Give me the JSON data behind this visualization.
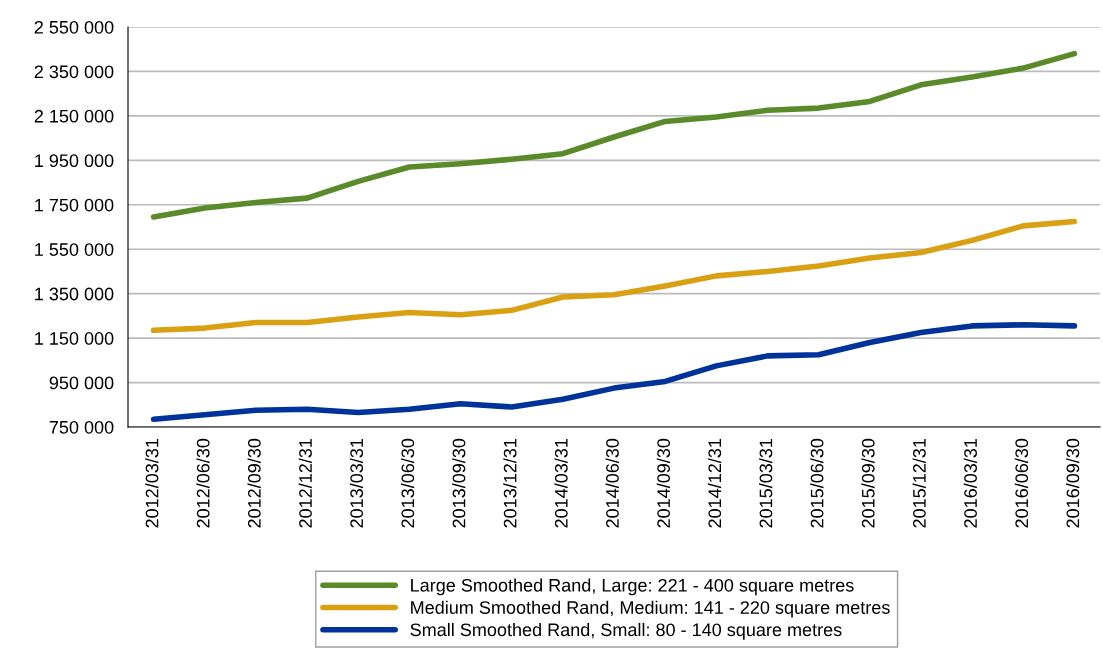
{
  "chart_data": {
    "type": "line",
    "categories": [
      "2012/03/31",
      "2012/06/30",
      "2012/09/30",
      "2012/12/31",
      "2013/03/31",
      "2013/06/30",
      "2013/09/30",
      "2013/12/31",
      "2014/03/31",
      "2014/06/30",
      "2014/09/30",
      "2014/12/31",
      "2015/03/31",
      "2015/06/30",
      "2015/09/30",
      "2015/12/31",
      "2016/03/31",
      "2016/06/30",
      "2016/09/30"
    ],
    "series": [
      {
        "name": "Large Smoothed Rand, Large: 221 - 400 square metres",
        "color": "#5b8a2a",
        "values": [
          1695000,
          1735000,
          1760000,
          1780000,
          1855000,
          1920000,
          1935000,
          1955000,
          1980000,
          2055000,
          2125000,
          2145000,
          2175000,
          2185000,
          2215000,
          2290000,
          2325000,
          2365000,
          2430000
        ]
      },
      {
        "name": "Medium Smoothed Rand, Medium: 141 - 220 square metres",
        "color": "#d9a014",
        "values": [
          1185000,
          1195000,
          1220000,
          1220000,
          1245000,
          1265000,
          1255000,
          1275000,
          1335000,
          1345000,
          1385000,
          1430000,
          1450000,
          1475000,
          1510000,
          1535000,
          1590000,
          1655000,
          1675000
        ]
      },
      {
        "name": "Small Smoothed Rand, Small: 80 - 140 square metres",
        "color": "#003399",
        "values": [
          785000,
          805000,
          825000,
          830000,
          815000,
          830000,
          855000,
          840000,
          875000,
          925000,
          955000,
          1025000,
          1070000,
          1075000,
          1130000,
          1175000,
          1205000,
          1210000,
          1205000
        ]
      }
    ],
    "ylim": [
      750000,
      2550000
    ],
    "yticks": [
      {
        "value": 750000,
        "label": "750 000"
      },
      {
        "value": 950000,
        "label": "950 000"
      },
      {
        "value": 1150000,
        "label": "1 150 000"
      },
      {
        "value": 1350000,
        "label": "1 350 000"
      },
      {
        "value": 1550000,
        "label": "1 550 000"
      },
      {
        "value": 1750000,
        "label": "1 750 000"
      },
      {
        "value": 1950000,
        "label": "1 950 000"
      },
      {
        "value": 2150000,
        "label": "2 150 000"
      },
      {
        "value": 2350000,
        "label": "2 350 000"
      },
      {
        "value": 2550000,
        "label": "2 550 000"
      }
    ],
    "grid": "y",
    "legend": "bottom",
    "marker": "none",
    "line_style": "solid"
  }
}
